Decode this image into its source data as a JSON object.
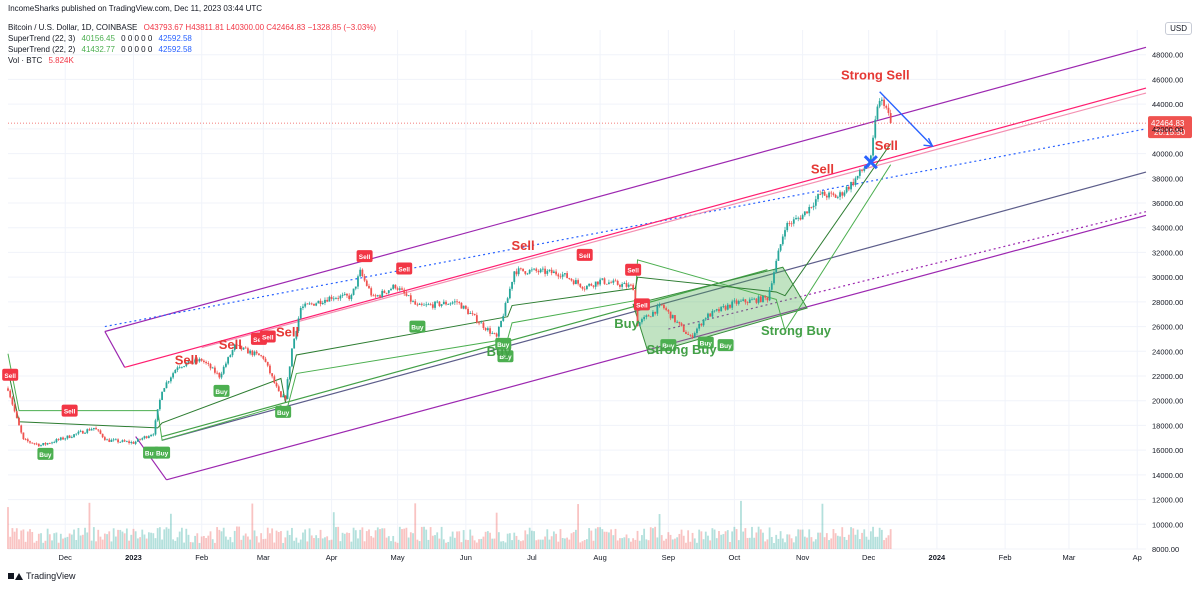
{
  "publisher_line": "IncomeSharks published on TradingView.com, Dec 11, 2023 03:44 UTC",
  "header": {
    "symbol_line": "Bitcoin / U.S. Dollar, 1D, COINBASE",
    "ohlc": "O43793.67  H43811.81  L40300.00  C42464.83  −1328.85 (−3.03%)",
    "indicators": [
      {
        "label": "SuperTrend (22, 3)",
        "v1": "40156.45",
        "zeros": "0  0  0  0  0",
        "v2": "42592.58"
      },
      {
        "label": "SuperTrend (22, 2)",
        "v1": "41432.77",
        "zeros": "0  0  0  0  0",
        "v2": "42592.58"
      }
    ],
    "volume": {
      "label": "Vol · BTC",
      "value": "5.824K"
    }
  },
  "currency_button": "USD",
  "footer_brand": "TradingView",
  "colors": {
    "up": "#26a69a",
    "down": "#ef5350",
    "buy_badge": "#4caf50",
    "sell_badge": "#f23645",
    "channel": "#9c27b0",
    "midline": "#ff1e70",
    "ann_green": "#43a047",
    "ann_red": "#e53935",
    "arrow": "#2962ff"
  },
  "chart_data": {
    "type": "candlestick",
    "title": "Bitcoin / U.S. Dollar, 1D, COINBASE",
    "x_range": [
      "2022-11-05",
      "2024-04-05"
    ],
    "ylim": [
      8000,
      50000
    ],
    "y_ticks": [
      8000,
      10000,
      12000,
      14000,
      16000,
      18000,
      20000,
      22000,
      24000,
      26000,
      28000,
      30000,
      32000,
      34000,
      36000,
      38000,
      40000,
      42000,
      44000,
      46000,
      48000
    ],
    "x_ticks": [
      {
        "date": "2022-12-01",
        "label": "Dec"
      },
      {
        "date": "2023-01-01",
        "label": "2023"
      },
      {
        "date": "2023-02-01",
        "label": "Feb"
      },
      {
        "date": "2023-03-01",
        "label": "Mar"
      },
      {
        "date": "2023-04-01",
        "label": "Apr"
      },
      {
        "date": "2023-05-01",
        "label": "May"
      },
      {
        "date": "2023-06-01",
        "label": "Jun"
      },
      {
        "date": "2023-07-01",
        "label": "Jul"
      },
      {
        "date": "2023-08-01",
        "label": "Aug"
      },
      {
        "date": "2023-09-01",
        "label": "Sep"
      },
      {
        "date": "2023-10-01",
        "label": "Oct"
      },
      {
        "date": "2023-11-01",
        "label": "Nov"
      },
      {
        "date": "2023-12-01",
        "label": "Dec"
      },
      {
        "date": "2024-01-01",
        "label": "2024"
      },
      {
        "date": "2024-02-01",
        "label": "Feb"
      },
      {
        "date": "2024-03-01",
        "label": "Mar"
      },
      {
        "date": "2024-04-01",
        "label": "Ap"
      }
    ],
    "last_price": {
      "value": 42464.83,
      "label": "42464.83",
      "countdown": "20:15:50"
    },
    "price_path": [
      [
        "2022-11-05",
        21000
      ],
      [
        "2022-11-09",
        18500
      ],
      [
        "2022-11-12",
        16800
      ],
      [
        "2022-11-20",
        16400
      ],
      [
        "2022-12-01",
        17000
      ],
      [
        "2022-12-14",
        17800
      ],
      [
        "2022-12-20",
        16800
      ],
      [
        "2023-01-01",
        16600
      ],
      [
        "2023-01-10",
        17400
      ],
      [
        "2023-01-14",
        20900
      ],
      [
        "2023-01-21",
        22800
      ],
      [
        "2023-02-01",
        23300
      ],
      [
        "2023-02-09",
        22000
      ],
      [
        "2023-02-16",
        24400
      ],
      [
        "2023-03-01",
        23500
      ],
      [
        "2023-03-09",
        20200
      ],
      [
        "2023-03-11",
        20300
      ],
      [
        "2023-03-14",
        24200
      ],
      [
        "2023-03-18",
        27500
      ],
      [
        "2023-04-01",
        28400
      ],
      [
        "2023-04-10",
        28400
      ],
      [
        "2023-04-14",
        30400
      ],
      [
        "2023-04-20",
        28300
      ],
      [
        "2023-04-30",
        29300
      ],
      [
        "2023-05-10",
        27600
      ],
      [
        "2023-05-28",
        28000
      ],
      [
        "2023-06-10",
        25900
      ],
      [
        "2023-06-15",
        25100
      ],
      [
        "2023-06-20",
        28300
      ],
      [
        "2023-06-23",
        30500
      ],
      [
        "2023-07-01",
        30500
      ],
      [
        "2023-07-14",
        30300
      ],
      [
        "2023-07-25",
        29200
      ],
      [
        "2023-08-01",
        29700
      ],
      [
        "2023-08-16",
        29200
      ],
      [
        "2023-08-18",
        26200
      ],
      [
        "2023-08-29",
        27700
      ],
      [
        "2023-09-11",
        25100
      ],
      [
        "2023-09-18",
        26800
      ],
      [
        "2023-10-01",
        27900
      ],
      [
        "2023-10-16",
        28300
      ],
      [
        "2023-10-24",
        34100
      ],
      [
        "2023-11-01",
        35000
      ],
      [
        "2023-11-09",
        36700
      ],
      [
        "2023-11-17",
        36500
      ],
      [
        "2023-11-24",
        37700
      ],
      [
        "2023-12-02",
        39500
      ],
      [
        "2023-12-05",
        44000
      ],
      [
        "2023-12-08",
        44200
      ],
      [
        "2023-12-11",
        42464.83
      ]
    ],
    "supertrend_22_3": [
      [
        "2022-11-05",
        23800
      ],
      [
        "2022-11-10",
        19200
      ],
      [
        "2023-01-12",
        19200
      ],
      [
        "2023-01-14",
        16800
      ],
      [
        "2023-03-09",
        19600
      ],
      [
        "2023-03-11",
        18800
      ],
      [
        "2023-03-16",
        22200
      ],
      [
        "2023-06-20",
        25000
      ],
      [
        "2023-06-22",
        26300
      ],
      [
        "2023-08-17",
        28100
      ],
      [
        "2023-08-18",
        31400
      ],
      [
        "2023-10-20",
        28200
      ],
      [
        "2023-10-24",
        25700
      ],
      [
        "2023-12-11",
        39100
      ]
    ],
    "supertrend_22_2": [
      [
        "2022-11-05",
        22500
      ],
      [
        "2022-11-10",
        18300
      ],
      [
        "2023-01-12",
        17800
      ],
      [
        "2023-01-14",
        18200
      ],
      [
        "2023-03-09",
        21800
      ],
      [
        "2023-03-11",
        19900
      ],
      [
        "2023-03-16",
        23700
      ],
      [
        "2023-06-20",
        26800
      ],
      [
        "2023-06-22",
        27700
      ],
      [
        "2023-08-17",
        29100
      ],
      [
        "2023-08-18",
        30000
      ],
      [
        "2023-10-20",
        28800
      ],
      [
        "2023-10-24",
        28500
      ],
      [
        "2023-12-11",
        40800
      ]
    ],
    "signals": [
      {
        "date": "2022-11-06",
        "price": 22100,
        "type": "Sell"
      },
      {
        "date": "2022-11-22",
        "price": 15700,
        "type": "Buy"
      },
      {
        "date": "2022-12-03",
        "price": 19200,
        "type": "Sell"
      },
      {
        "date": "2023-01-09",
        "price": 15800,
        "type": "Buy"
      },
      {
        "date": "2023-01-14",
        "price": 15800,
        "type": "Buy"
      },
      {
        "date": "2023-02-10",
        "price": 20800,
        "type": "Buy"
      },
      {
        "date": "2023-02-27",
        "price": 25000,
        "type": "Sell"
      },
      {
        "date": "2023-03-03",
        "price": 25200,
        "type": "Sell"
      },
      {
        "date": "2023-03-10",
        "price": 19100,
        "type": "Buy"
      },
      {
        "date": "2023-04-16",
        "price": 31700,
        "type": "Sell"
      },
      {
        "date": "2023-05-04",
        "price": 30700,
        "type": "Sell"
      },
      {
        "date": "2023-05-10",
        "price": 26000,
        "type": "Buy"
      },
      {
        "date": "2023-06-18",
        "price": 24600,
        "type": "Buy"
      },
      {
        "date": "2023-06-19",
        "price": 23600,
        "type": "Buy"
      },
      {
        "date": "2023-07-25",
        "price": 31800,
        "type": "Sell"
      },
      {
        "date": "2023-08-16",
        "price": 30600,
        "type": "Sell"
      },
      {
        "date": "2023-08-20",
        "price": 27800,
        "type": "Sell"
      },
      {
        "date": "2023-09-01",
        "price": 24500,
        "type": "Buy"
      },
      {
        "date": "2023-09-18",
        "price": 24700,
        "type": "Buy"
      },
      {
        "date": "2023-09-27",
        "price": 24500,
        "type": "Buy"
      }
    ],
    "trendlines": [
      {
        "name": "upper-channel",
        "from": [
          "2022-12-19",
          25600
        ],
        "to": [
          "2024-04-05",
          48600
        ],
        "style": "solid",
        "color": "#9c27b0"
      },
      {
        "name": "lower-channel",
        "from": [
          "2023-01-16",
          13600
        ],
        "to": [
          "2024-04-05",
          35000
        ],
        "style": "solid",
        "color": "#9c27b0"
      },
      {
        "name": "channel-lower-double",
        "from": [
          "2023-09-01",
          25800
        ],
        "to": [
          "2024-04-05",
          35300
        ],
        "style": "dotted",
        "color": "#9c27b0"
      },
      {
        "name": "midline-dotted",
        "from": [
          "2022-12-19",
          26000
        ],
        "to": [
          "2024-04-05",
          42000
        ],
        "style": "dotted",
        "color": "#2962ff"
      },
      {
        "name": "pink-resistance",
        "from": [
          "2022-12-28",
          22700
        ],
        "to": [
          "2024-04-05",
          45300
        ],
        "style": "solid",
        "color": "#ff1e70"
      },
      {
        "name": "pink-resistance-2",
        "from": [
          "2023-02-01",
          24300
        ],
        "to": [
          "2024-04-05",
          44900
        ],
        "style": "solid",
        "color": "#f48fb1"
      },
      {
        "name": "green-support",
        "from": [
          "2023-01-14",
          17100
        ],
        "to": [
          "2023-10-16",
          30600
        ],
        "style": "solid",
        "color": "#43a047"
      },
      {
        "name": "navy-trend",
        "from": [
          "2023-01-14",
          16800
        ],
        "to": [
          "2024-04-05",
          38500
        ],
        "style": "solid",
        "color": "#5c5d8a"
      }
    ],
    "annotations": [
      {
        "date": "2023-01-25",
        "price": 22950,
        "text": "Sell",
        "color": "#e53935"
      },
      {
        "date": "2023-02-14",
        "price": 24200,
        "text": "Sell",
        "color": "#e53935"
      },
      {
        "date": "2023-03-12",
        "price": 25200,
        "text": "Sell",
        "color": "#e53935"
      },
      {
        "date": "2023-06-27",
        "price": 32200,
        "text": "Sell",
        "color": "#e53935"
      },
      {
        "date": "2023-08-13",
        "price": 25900,
        "text": "Buy",
        "color": "#43a047"
      },
      {
        "date": "2023-06-16",
        "price": 23600,
        "text": "Buy",
        "color": "#43a047"
      },
      {
        "date": "2023-11-10",
        "price": 38400,
        "text": "Sell",
        "color": "#e53935"
      },
      {
        "date": "2023-12-09",
        "price": 40300,
        "text": "Sell",
        "color": "#e53935"
      },
      {
        "date": "2023-12-04",
        "price": 46000,
        "text": "Strong Sell",
        "color": "#e53935"
      },
      {
        "date": "2023-09-07",
        "price": 23800,
        "text": "Strong Buy",
        "color": "#43a047"
      },
      {
        "date": "2023-10-29",
        "price": 25300,
        "text": "Strong Buy",
        "color": "#43a047"
      }
    ],
    "zones": [
      {
        "name": "buy-zone",
        "points": [
          [
            "2023-08-16",
            27800
          ],
          [
            "2023-10-23",
            30800
          ],
          [
            "2023-11-03",
            27500
          ],
          [
            "2023-08-23",
            23800
          ]
        ],
        "color": "#4caf50"
      }
    ],
    "breakout_marker": {
      "date": "2023-12-02",
      "price": 39300
    },
    "projection_arrow": {
      "from": [
        "2023-12-06",
        45000
      ],
      "to": [
        "2023-12-30",
        40600
      ]
    },
    "volume": {
      "ylim": [
        0,
        800
      ]
    }
  }
}
